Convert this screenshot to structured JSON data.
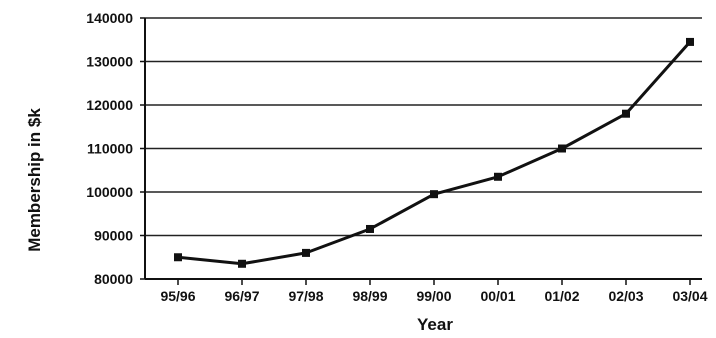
{
  "chart_data": {
    "type": "line",
    "xlabel": "Year",
    "ylabel": "Membership in $k",
    "categories": [
      "95/96",
      "96/97",
      "97/98",
      "98/99",
      "99/00",
      "00/01",
      "01/02",
      "02/03",
      "03/04"
    ],
    "series": [
      {
        "values": [
          85000,
          83500,
          86000,
          91500,
          99500,
          103500,
          110000,
          118000,
          134500
        ]
      }
    ],
    "ylim": [
      80000,
      140000
    ],
    "yticks": [
      80000,
      90000,
      100000,
      110000,
      120000,
      130000,
      140000
    ],
    "ytick_labels": [
      "80000",
      "90000",
      "100000",
      "110000",
      "120000",
      "130000",
      "140000"
    ],
    "grid": true,
    "legend": "none",
    "colors": {
      "line": "#111111",
      "grid": "#222222",
      "background": "#ffffff"
    }
  }
}
